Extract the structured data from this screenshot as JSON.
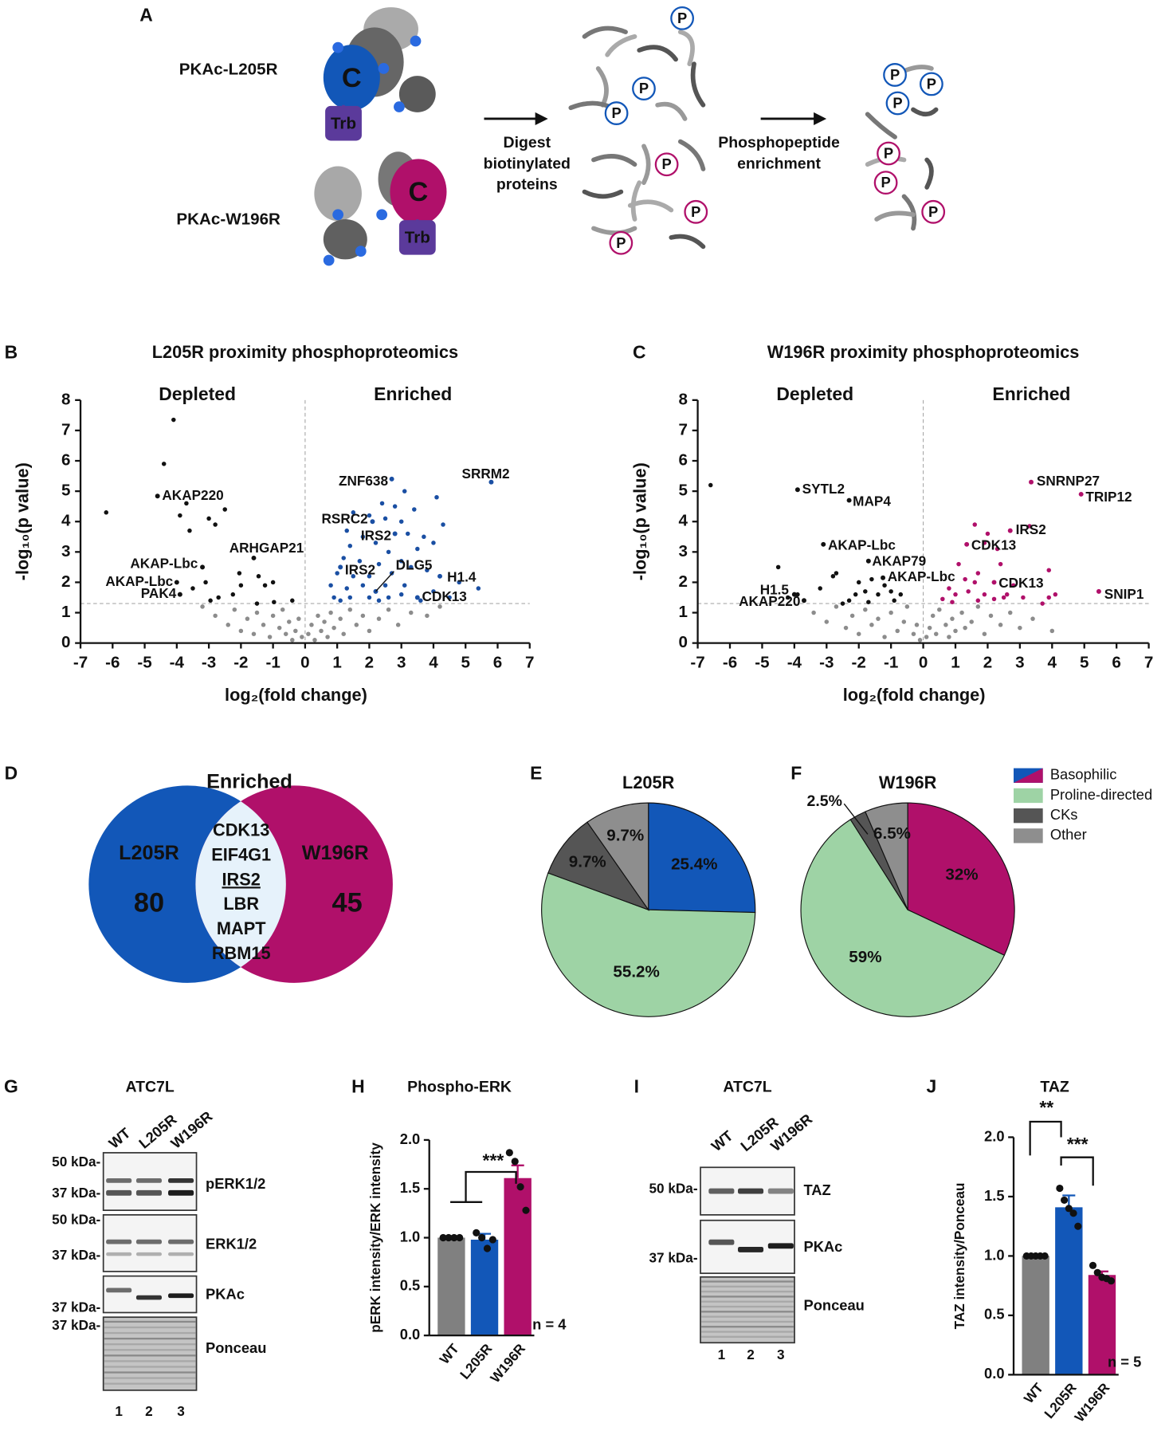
{
  "panel_labels": [
    "A",
    "B",
    "C",
    "D",
    "E",
    "F",
    "G",
    "H",
    "I",
    "J"
  ],
  "schematic": {
    "top_label": "PKAc-L205R",
    "bottom_label": "PKAc-W196R",
    "c_label": "C",
    "trb_label": "Trb",
    "p_label": "P",
    "step1": [
      "Digest",
      "biotinylated",
      "proteins"
    ],
    "step2": [
      "Phosphopeptide",
      "enrichment"
    ]
  },
  "venn": {
    "title": "Enriched",
    "left_name": "L205R",
    "left_count": 80,
    "right_name": "W196R",
    "right_count": 45,
    "shared": [
      "CDK13",
      "EIF4G1",
      "IRS2",
      "LBR",
      "MAPT",
      "RBM15"
    ],
    "highlight": "IRS2",
    "left_color": "#1257b8",
    "right_color": "#b0106a",
    "shared_color": "#e6f2fb",
    "highlight_color": "#e8541e"
  },
  "legend": {
    "entries": [
      "Basophilic",
      "Proline-directed",
      "CKs",
      "Other"
    ],
    "colors": [
      "#1257b8",
      "#9ed3a5",
      "#555555",
      "#8e8e8e"
    ],
    "split_color": "#b0106a"
  },
  "chart_data": [
    {
      "type": "scatter",
      "title": "L205R proximity phosphoproteomics",
      "x_label": "log₂(fold change)",
      "y_label": "-log₁₀(p value)",
      "annotations": [
        "Depleted",
        "Enriched"
      ],
      "annotation_colors": [
        "#111111",
        "#1a4fa3"
      ],
      "xlim": [
        -7,
        7
      ],
      "xticks": [
        -7,
        -6,
        -5,
        -4,
        -3,
        -2,
        -1,
        0,
        1,
        2,
        3,
        4,
        5,
        6,
        7
      ],
      "ylim": [
        0,
        8
      ],
      "yticks": [
        0,
        1,
        2,
        3,
        4,
        5,
        6,
        7,
        8
      ],
      "threshold_y": 1.3,
      "series": [
        {
          "color": "#8c8c8c",
          "x": [
            -3.2,
            -2.8,
            -2.4,
            -2.2,
            -2.0,
            -1.8,
            -1.6,
            -1.5,
            -1.3,
            -1.1,
            -1.0,
            -0.8,
            -0.7,
            -0.6,
            -0.5,
            -0.4,
            -0.3,
            -0.2,
            -0.1,
            0.1,
            0.2,
            0.3,
            0.4,
            0.5,
            0.6,
            0.7,
            0.8,
            0.9,
            1.1,
            1.2,
            1.4,
            1.6,
            1.8,
            2.0,
            2.3,
            2.6,
            2.9,
            3.3,
            3.8,
            4.2
          ],
          "values": [
            1.2,
            0.9,
            0.6,
            1.1,
            0.4,
            0.8,
            0.3,
            1.0,
            0.6,
            0.2,
            0.9,
            0.5,
            1.1,
            0.3,
            0.7,
            0.1,
            0.4,
            0.8,
            0.2,
            0.3,
            0.6,
            0.1,
            0.9,
            0.4,
            0.7,
            0.2,
            1.0,
            0.5,
            0.8,
            0.3,
            1.1,
            0.6,
            0.9,
            0.4,
            0.8,
            1.1,
            0.6,
            1.0,
            0.9,
            1.2
          ]
        },
        {
          "color": "#111111",
          "x": [
            -4.1,
            -4.4,
            -6.2,
            -3.7,
            -2.5,
            -3.0,
            -2.8,
            -3.6,
            -3.9,
            -3.1,
            -2.05,
            -2.0,
            -1.45,
            -1.25,
            -1.0,
            -2.7,
            -2.25,
            -1.5,
            -0.97,
            -0.4,
            -3.5,
            -2.95
          ],
          "values": [
            7.35,
            5.9,
            4.3,
            4.6,
            4.4,
            4.1,
            3.9,
            3.7,
            4.2,
            2.0,
            2.3,
            1.9,
            2.2,
            1.9,
            2.0,
            1.5,
            1.6,
            1.3,
            1.35,
            1.4,
            1.8,
            1.4
          ]
        },
        {
          "color": "#1a4fa3",
          "x": [
            3.1,
            4.1,
            2.4,
            2.8,
            3.4,
            1.5,
            2.0,
            2.5,
            3.0,
            4.3,
            1.3,
            1.8,
            2.2,
            3.2,
            3.7,
            1.4,
            2.6,
            3.5,
            4.0,
            1.2,
            1.7,
            2.3,
            3.0,
            3.3,
            1.0,
            1.5,
            2.0,
            2.7,
            3.8,
            4.8,
            5.4,
            0.8,
            1.3,
            1.8,
            2.5,
            3.1,
            4.0,
            0.9,
            1.4,
            2.0,
            2.6,
            3.0,
            3.6,
            4.5,
            1.1,
            2.3
          ],
          "values": [
            5.0,
            4.8,
            4.6,
            4.5,
            4.4,
            4.3,
            4.2,
            4.1,
            4.0,
            3.9,
            3.7,
            3.5,
            3.3,
            3.6,
            3.5,
            3.2,
            3.0,
            3.1,
            3.3,
            2.8,
            2.7,
            2.6,
            2.7,
            2.5,
            2.3,
            2.2,
            2.2,
            2.3,
            2.4,
            2.0,
            1.8,
            1.9,
            1.8,
            1.9,
            1.9,
            1.9,
            1.7,
            1.5,
            1.5,
            1.5,
            1.5,
            1.6,
            1.4,
            1.5,
            1.4,
            1.4
          ]
        }
      ],
      "point_labels": [
        {
          "text": "AKAP220",
          "x": -4.6,
          "y": 4.84
        },
        {
          "text": "AKAP-Lbc",
          "x": -3.2,
          "y": 2.5
        },
        {
          "text": "AKAP-Lbc",
          "x": -4.0,
          "y": 2.0
        },
        {
          "text": "PAK4",
          "x": -3.9,
          "y": 1.6
        },
        {
          "text": "ARHGAP21",
          "x": -1.6,
          "y": 2.8
        },
        {
          "text": "ZNF638",
          "x": 2.7,
          "y": 5.4
        },
        {
          "text": "SRRM2",
          "x": 5.8,
          "y": 5.3
        },
        {
          "text": "RSRC2",
          "x": 2.1,
          "y": 4.0
        },
        {
          "text": "IRS2",
          "x": 2.8,
          "y": 3.6
        },
        {
          "text": "IRS2",
          "x": 1.1,
          "y": 2.5
        },
        {
          "text": "DLG5",
          "x": 2.2,
          "y": 1.7
        },
        {
          "text": "H1.4",
          "x": 4.2,
          "y": 2.2
        },
        {
          "text": "CDK13",
          "x": 3.5,
          "y": 1.5
        }
      ]
    },
    {
      "type": "scatter",
      "title": "W196R proximity phosphoproteomics",
      "x_label": "log₂(fold change)",
      "y_label": "-log₁₀(p value)",
      "annotations": [
        "Depleted",
        "Enriched"
      ],
      "annotation_colors": [
        "#111111",
        "#b0106a"
      ],
      "xlim": [
        -7,
        7
      ],
      "xticks": [
        -7,
        -6,
        -5,
        -4,
        -3,
        -2,
        -1,
        0,
        1,
        2,
        3,
        4,
        5,
        6,
        7
      ],
      "ylim": [
        0,
        8
      ],
      "yticks": [
        0,
        1,
        2,
        3,
        4,
        5,
        6,
        7,
        8
      ],
      "threshold_y": 1.3,
      "series": [
        {
          "color": "#8c8c8c",
          "x": [
            -3.4,
            -3.0,
            -2.7,
            -2.4,
            -2.2,
            -2.0,
            -1.8,
            -1.6,
            -1.4,
            -1.2,
            -1.0,
            -0.8,
            -0.6,
            -0.5,
            -0.3,
            -0.2,
            -0.1,
            0.1,
            0.2,
            0.3,
            0.4,
            0.5,
            0.7,
            0.8,
            0.9,
            1.0,
            1.2,
            1.3,
            1.5,
            1.7,
            1.9,
            2.1,
            2.4,
            2.7,
            3.0,
            3.4,
            4.0
          ],
          "values": [
            1.0,
            0.7,
            1.2,
            0.5,
            0.9,
            0.3,
            1.1,
            0.6,
            0.8,
            0.2,
            1.0,
            0.4,
            0.7,
            1.2,
            0.3,
            0.6,
            0.1,
            0.2,
            0.5,
            0.9,
            0.3,
            1.1,
            0.6,
            0.2,
            0.8,
            0.4,
            1.0,
            0.5,
            0.7,
            1.2,
            0.3,
            0.9,
            0.6,
            1.0,
            0.5,
            0.8,
            0.4
          ]
        },
        {
          "color": "#111111",
          "x": [
            -6.6,
            -4.5,
            -4.2,
            -3.9,
            -3.2,
            -2.8,
            -2.7,
            -2.5,
            -2.3,
            -2.0,
            -1.8,
            -1.6,
            -1.4,
            -1.2,
            -1.0,
            -0.9,
            -0.7,
            -1.7,
            -2.1
          ],
          "values": [
            5.2,
            2.5,
            1.5,
            1.6,
            1.8,
            2.2,
            2.3,
            1.3,
            1.4,
            2.0,
            1.7,
            2.1,
            1.6,
            1.9,
            1.7,
            1.4,
            1.6,
            1.35,
            1.6
          ]
        },
        {
          "color": "#b0106a",
          "x": [
            1.6,
            2.0,
            3.3,
            1.9,
            2.3,
            1.1,
            1.7,
            2.4,
            3.9,
            1.3,
            1.6,
            0.8,
            1.0,
            1.4,
            1.9,
            2.5,
            2.8,
            3.1,
            3.9,
            0.6,
            0.9,
            1.7,
            2.2,
            2.6,
            3.7,
            4.1
          ],
          "values": [
            3.9,
            3.6,
            3.85,
            3.3,
            3.1,
            2.6,
            2.3,
            2.6,
            2.4,
            2.1,
            2.0,
            1.8,
            1.6,
            1.7,
            1.6,
            1.5,
            1.9,
            1.5,
            1.5,
            1.45,
            1.35,
            1.4,
            1.45,
            1.6,
            1.3,
            1.6
          ]
        }
      ],
      "point_labels": [
        {
          "text": "SYTL2",
          "x": -3.9,
          "y": 5.05
        },
        {
          "text": "MAP4",
          "x": -2.3,
          "y": 4.7
        },
        {
          "text": "AKAP-Lbc",
          "x": -3.1,
          "y": 3.25
        },
        {
          "text": "AKAP79",
          "x": -1.7,
          "y": 2.7
        },
        {
          "text": "AKAP-Lbc",
          "x": -1.25,
          "y": 2.15
        },
        {
          "text": "H1.5",
          "x": -4.0,
          "y": 1.6
        },
        {
          "text": "AKAP220",
          "x": -3.7,
          "y": 1.4
        },
        {
          "text": "SNRNP27",
          "x": 3.35,
          "y": 5.3
        },
        {
          "text": "TRIP12",
          "x": 4.9,
          "y": 4.9
        },
        {
          "text": "IRS2",
          "x": 2.7,
          "y": 3.7
        },
        {
          "text": "CDK13",
          "x": 1.35,
          "y": 3.25
        },
        {
          "text": "CDK13",
          "x": 2.2,
          "y": 2.0
        },
        {
          "text": "SNIP1",
          "x": 5.45,
          "y": 1.7
        }
      ]
    },
    {
      "type": "pie",
      "title": "L205R",
      "values": [
        25.4,
        55.2,
        9.7,
        9.7
      ],
      "value_labels": [
        "25.4%",
        "55.2%",
        "9.7%",
        "9.7%"
      ],
      "colors": [
        "#1257b8",
        "#9ed3a5",
        "#555555",
        "#8e8e8e"
      ]
    },
    {
      "type": "pie",
      "title": "W196R",
      "values": [
        32,
        59,
        2.5,
        6.5
      ],
      "value_labels": [
        "32%",
        "59%",
        "2.5%",
        "6.5%"
      ],
      "colors": [
        "#b0106a",
        "#9ed3a5",
        "#555555",
        "#8e8e8e"
      ]
    },
    {
      "type": "bar",
      "title": "Phospho-ERK",
      "y_label": "pERK intensity/ERK intensity",
      "categories": [
        "WT",
        "L205R",
        "W196R"
      ],
      "values": [
        1.0,
        0.98,
        1.61
      ],
      "errors": [
        0,
        0.06,
        0.13
      ],
      "points": [
        [
          1,
          1,
          1,
          1
        ],
        [
          1.05,
          1.0,
          0.89,
          0.98
        ],
        [
          1.87,
          1.78,
          1.52,
          1.28
        ]
      ],
      "colors": [
        "#808080",
        "#1257b8",
        "#b0106a"
      ],
      "ylim": [
        0,
        2
      ],
      "yticks": [
        {
          "value": 0,
          "label": "0.0"
        },
        0.5,
        {
          "value": 1,
          "label": "1.0"
        },
        1.5,
        {
          "value": 2,
          "label": "2.0"
        }
      ],
      "annotations": [
        "***",
        "n = 4"
      ]
    },
    {
      "type": "bar",
      "title": "TAZ",
      "y_label": "TAZ intensity/Ponceau",
      "categories": [
        "WT",
        "L205R",
        "W196R"
      ],
      "values": [
        1.0,
        1.41,
        0.84
      ],
      "errors": [
        0,
        0.1,
        0.03
      ],
      "points": [
        [
          1,
          1,
          1,
          1,
          1
        ],
        [
          1.57,
          1.47,
          1.4,
          1.36,
          1.25
        ],
        [
          0.92,
          0.86,
          0.82,
          0.81,
          0.79
        ]
      ],
      "colors": [
        "#808080",
        "#1257b8",
        "#b0106a"
      ],
      "ylim": [
        0,
        2
      ],
      "yticks": [
        {
          "value": 0,
          "label": "0.0"
        },
        0.5,
        {
          "value": 1,
          "label": "1.0"
        },
        1.5,
        {
          "value": 2,
          "label": "2.0"
        }
      ],
      "annotations": [
        "**",
        "***",
        "n = 5"
      ]
    }
  ],
  "blot_g": {
    "title": "ATC7L",
    "lanes": [
      "WT",
      "L205R",
      "W196R"
    ],
    "lane_colors": [
      "#111111",
      "#1a4fa3",
      "#b0106a"
    ],
    "markers": [
      "50 kDa-",
      "37 kDa-",
      "50 kDa-",
      "37 kDa-",
      "37 kDa-",
      "37 kDa-"
    ],
    "targets": [
      "pERK1/2",
      "ERK1/2",
      "PKAc",
      "Ponceau"
    ],
    "lane_numbers": [
      1,
      2,
      3
    ]
  },
  "blot_i": {
    "title": "ATC7L",
    "lanes": [
      "WT",
      "L205R",
      "W196R"
    ],
    "lane_colors": [
      "#111111",
      "#1a4fa3",
      "#b0106a"
    ],
    "markers": [
      "50 kDa-",
      "37 kDa-"
    ],
    "targets": [
      "TAZ",
      "PKAc",
      "Ponceau"
    ],
    "lane_numbers": [
      1,
      2,
      3
    ]
  }
}
